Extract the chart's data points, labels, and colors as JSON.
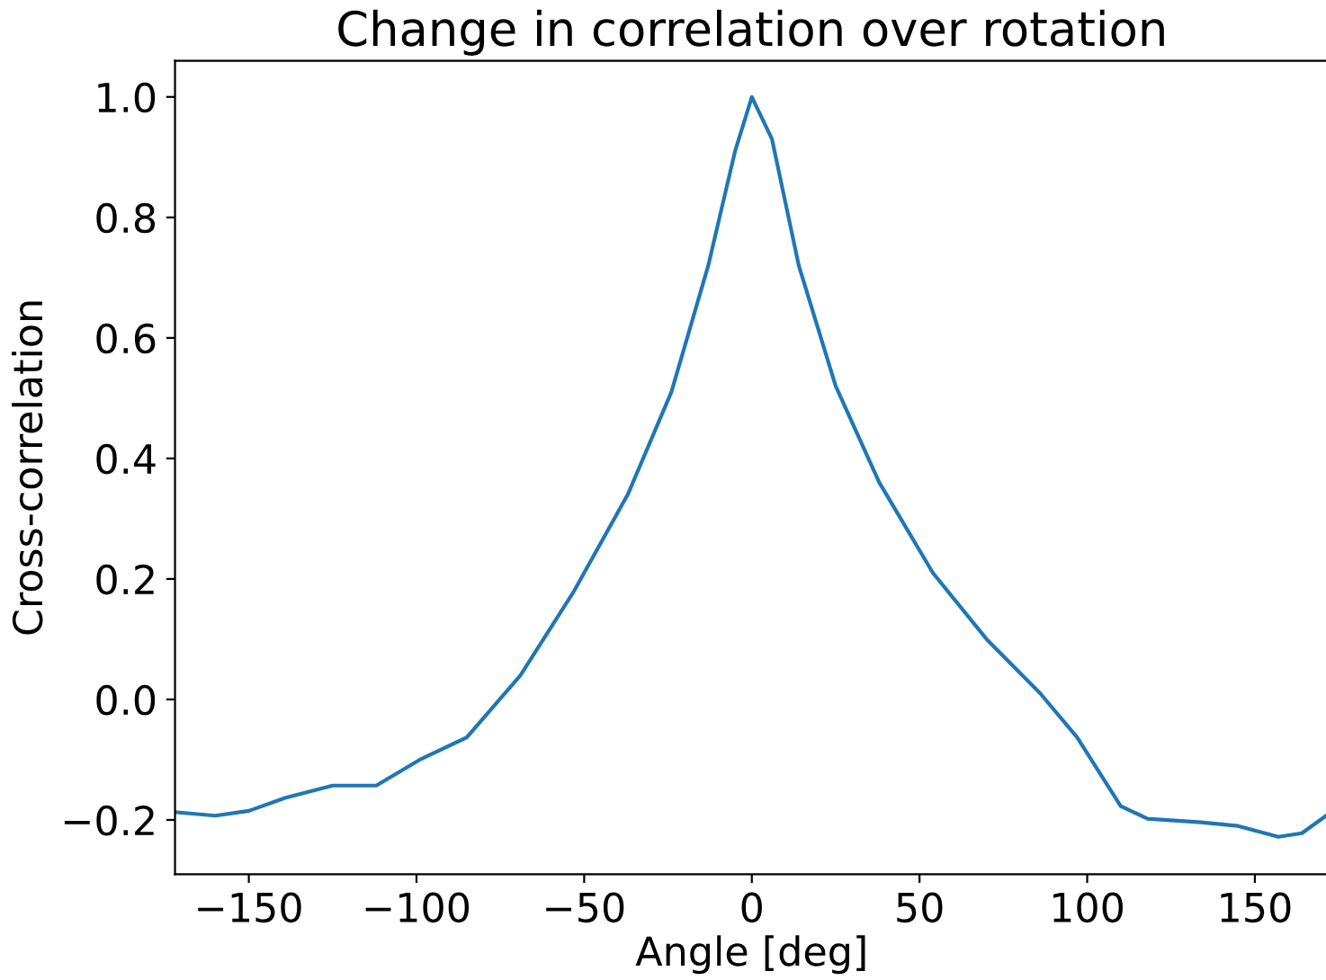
{
  "chart_data": {
    "type": "line",
    "title": "Change in correlation over rotation",
    "xlabel": "Angle [deg]",
    "ylabel": "Cross-correlation",
    "x": [
      -172,
      -160,
      -150,
      -139,
      -125,
      -112,
      -99,
      -85,
      -69,
      -53,
      -37,
      -24,
      -13,
      -5,
      0,
      6,
      14,
      25,
      38,
      54,
      70,
      86,
      97,
      110,
      118,
      134,
      145,
      157,
      164,
      172
    ],
    "series": [
      {
        "color": "#1f77b4",
        "values": [
          -0.187,
          -0.193,
          -0.185,
          -0.163,
          -0.143,
          -0.143,
          -0.1,
          -0.063,
          0.04,
          0.18,
          0.34,
          0.51,
          0.72,
          0.91,
          1.0,
          0.93,
          0.72,
          0.52,
          0.36,
          0.21,
          0.1,
          0.01,
          -0.063,
          -0.177,
          -0.198,
          -0.204,
          -0.21,
          -0.228,
          -0.222,
          -0.19
        ]
      }
    ],
    "xlim": [
      -172,
      172
    ],
    "ylim": [
      -0.29,
      1.06
    ],
    "xticks": [
      {
        "value": -150,
        "label": "−150"
      },
      {
        "value": -100,
        "label": "−100"
      },
      {
        "value": -50,
        "label": "−50"
      },
      0,
      50,
      100,
      150
    ],
    "yticks": [
      {
        "value": -0.2,
        "label": "−0.2"
      },
      {
        "value": 0.0,
        "label": "0.0"
      },
      {
        "value": 0.2,
        "label": "0.2"
      },
      {
        "value": 0.4,
        "label": "0.4"
      },
      {
        "value": 0.6,
        "label": "0.6"
      },
      {
        "value": 0.8,
        "label": "0.8"
      },
      {
        "value": 1.0,
        "label": "1.0"
      }
    ],
    "grid": false,
    "legend": false,
    "marker": "none",
    "line_style": "solid"
  }
}
